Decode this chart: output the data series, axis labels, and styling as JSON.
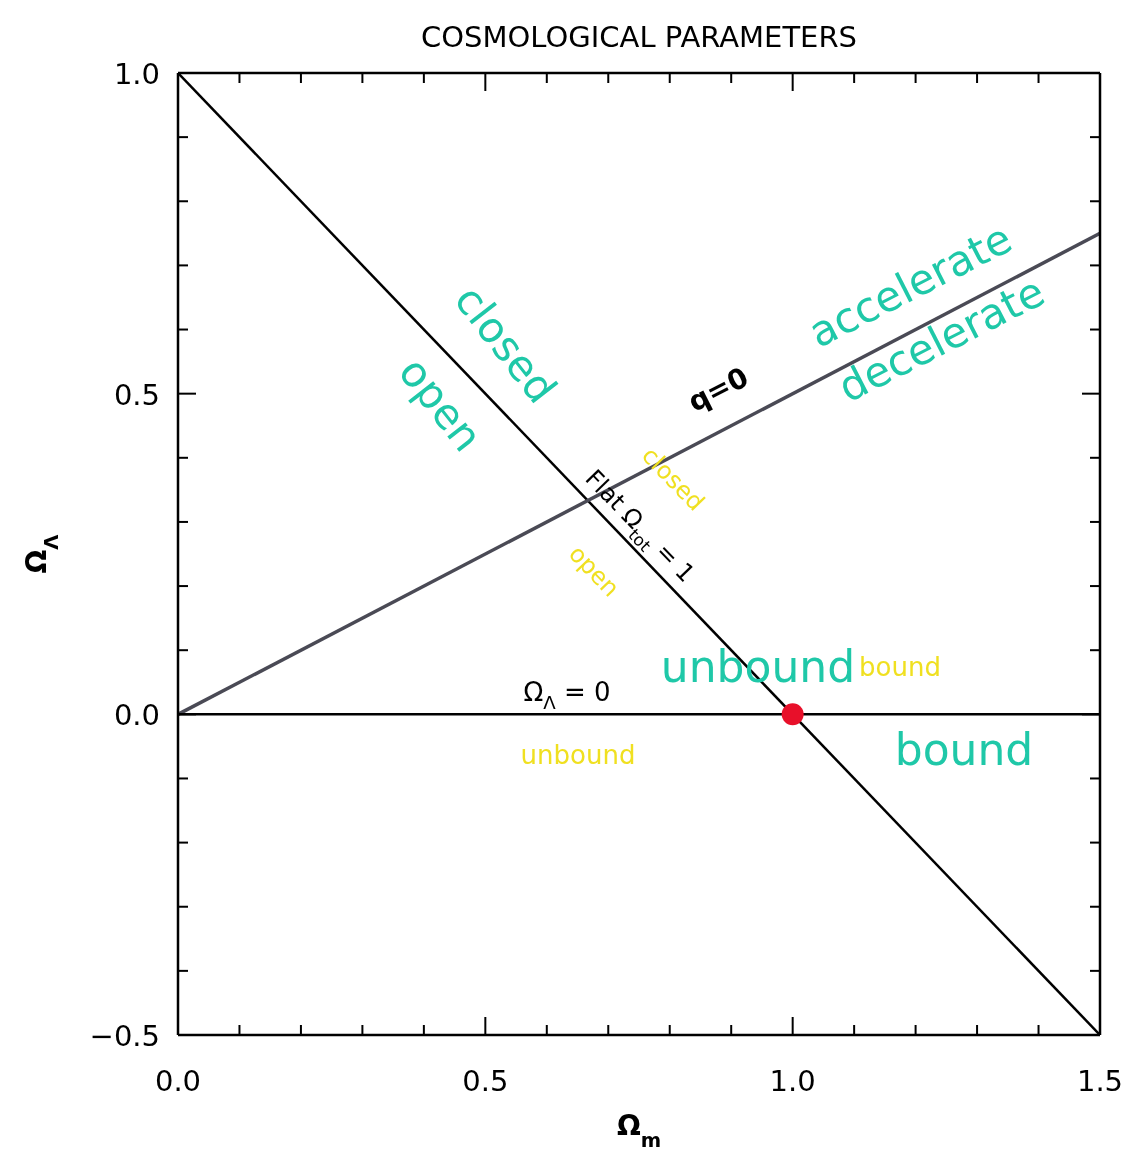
{
  "chart_data": {
    "type": "line",
    "title": "COSMOLOGICAL PARAMETERS",
    "xlabel": "Ω$_{m}$",
    "ylabel": "Ω$_{Λ}$",
    "xlim": [
      0,
      1.5
    ],
    "ylim": [
      -0.5,
      1.0
    ],
    "xticks": [
      {
        "value": 0,
        "label": "0.0"
      },
      {
        "value": 0.1,
        "label": null
      },
      {
        "value": 0.2,
        "label": null
      },
      {
        "value": 0.3,
        "label": null
      },
      {
        "value": 0.4,
        "label": null
      },
      {
        "value": 0.5,
        "label": "0.5"
      },
      {
        "value": 0.6,
        "label": null
      },
      {
        "value": 0.7,
        "label": null
      },
      {
        "value": 0.8,
        "label": null
      },
      {
        "value": 0.9,
        "label": null
      },
      {
        "value": 1,
        "label": "1.0"
      },
      {
        "value": 1.1,
        "label": null
      },
      {
        "value": 1.2,
        "label": null
      },
      {
        "value": 1.3,
        "label": null
      },
      {
        "value": 1.4,
        "label": null
      },
      {
        "value": 1.5,
        "label": "1.5"
      }
    ],
    "yticks": [
      {
        "value": -0.5,
        "label": "−0.5"
      },
      {
        "value": -0.4,
        "label": null
      },
      {
        "value": -0.3,
        "label": null
      },
      {
        "value": -0.2,
        "label": null
      },
      {
        "value": -0.1,
        "label": null
      },
      {
        "value": 0,
        "label": "0.0"
      },
      {
        "value": 0.1,
        "label": null
      },
      {
        "value": 0.2,
        "label": null
      },
      {
        "value": 0.3,
        "label": null
      },
      {
        "value": 0.4,
        "label": null
      },
      {
        "value": 0.5,
        "label": "0.5"
      },
      {
        "value": 0.6,
        "label": null
      },
      {
        "value": 0.7,
        "label": null
      },
      {
        "value": 0.8,
        "label": null
      },
      {
        "value": 0.9,
        "label": null
      },
      {
        "value": 1,
        "label": "1.0"
      }
    ],
    "series": [
      {
        "color": "#000000",
        "x": [
          0,
          1.5
        ],
        "values": [
          1,
          -0.5
        ]
      },
      {
        "color": "#4a4a55",
        "x": [
          0,
          1.5
        ],
        "values": [
          0,
          0.75
        ]
      },
      {
        "color": "#000000",
        "x": [
          0,
          1.5
        ],
        "values": [
          0,
          0
        ]
      },
      {
        "type": "scatter",
        "color": "#e8102a",
        "marker": "circle",
        "x": [
          1.0
        ],
        "values": [
          0
        ]
      }
    ],
    "annotations": [
      "closed",
      "open",
      "accelerate",
      "decelerate",
      "q=0",
      "closed",
      "Flat Ω$_{tot}$ = 1",
      "open",
      "unbound",
      "bound",
      "Ω$_{Λ}$ = 0",
      "unbound",
      "bound"
    ]
  }
}
